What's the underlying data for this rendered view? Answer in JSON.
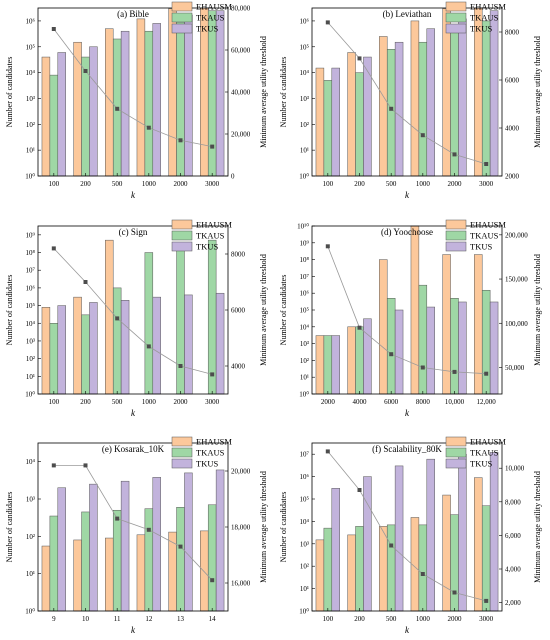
{
  "colors": {
    "EHAUSM": "#fcc89b",
    "TKAUS": "#9fd7a5",
    "TKUS": "#c2b3dc",
    "line": "#9a9a9a",
    "marker": "#4d4d4d"
  },
  "chart_data": [
    {
      "type": "bar",
      "title": "(a) Bible",
      "xlabel": "k",
      "ylabel": "Number of candidates",
      "y2label": "Minimum average utility threshold",
      "y_scale": "log",
      "ylog_range": [
        0,
        6.5
      ],
      "y_ticks": [
        [
          "10⁰",
          0
        ],
        [
          "10¹",
          1
        ],
        [
          "10²",
          2
        ],
        [
          "10³",
          3
        ],
        [
          "10⁴",
          4
        ],
        [
          "10⁵",
          5
        ],
        [
          "10⁶",
          6
        ]
      ],
      "y2lim": [
        0,
        80000
      ],
      "y2_ticks": [
        [
          "0",
          0
        ],
        [
          "20,000",
          20000
        ],
        [
          "40,000",
          40000
        ],
        [
          "60,000",
          60000
        ],
        [
          "80,000",
          80000
        ]
      ],
      "categories": [
        "100",
        "200",
        "500",
        "1000",
        "2000",
        "3000"
      ],
      "series": [
        {
          "name": "EHAUSM",
          "values": [
            40000,
            150000,
            500000,
            1200000,
            3000000,
            15000000
          ]
        },
        {
          "name": "TKAUS",
          "values": [
            8000,
            40000,
            200000,
            400000,
            900000,
            2500000
          ]
        },
        {
          "name": "TKUS",
          "values": [
            60000,
            100000,
            400000,
            800000,
            1700000,
            2500000
          ]
        }
      ],
      "line": {
        "values": [
          70000,
          50000,
          32000,
          23000,
          17000,
          14000
        ]
      },
      "legend_position": "top-right"
    },
    {
      "type": "bar",
      "title": "(b) Leviathan",
      "xlabel": "k",
      "ylabel": "Number of candidates",
      "y2label": "Minimum average utility threshold",
      "y_scale": "log",
      "ylog_range": [
        0,
        6.5
      ],
      "y_ticks": [
        [
          "10⁰",
          0
        ],
        [
          "10¹",
          1
        ],
        [
          "10²",
          2
        ],
        [
          "10³",
          3
        ],
        [
          "10⁴",
          4
        ],
        [
          "10⁵",
          5
        ],
        [
          "10⁶",
          6
        ]
      ],
      "y2lim": [
        2000,
        9000
      ],
      "y2_ticks": [
        [
          "2000",
          2000
        ],
        [
          "4000",
          4000
        ],
        [
          "6000",
          6000
        ],
        [
          "8000",
          8000
        ]
      ],
      "categories": [
        "100",
        "200",
        "500",
        "1000",
        "2000",
        "3000"
      ],
      "series": [
        {
          "name": "EHAUSM",
          "values": [
            15000,
            60000,
            250000,
            1000000,
            3000000,
            15000000
          ]
        },
        {
          "name": "TKAUS",
          "values": [
            5000,
            10000,
            80000,
            150000,
            600000,
            1000000
          ]
        },
        {
          "name": "TKUS",
          "values": [
            15000,
            40000,
            150000,
            500000,
            1200000,
            2500000
          ]
        }
      ],
      "line": {
        "values": [
          8400,
          6900,
          4800,
          3700,
          2900,
          2500
        ]
      },
      "legend_position": "top-right"
    },
    {
      "type": "bar",
      "title": "(c) Sign",
      "xlabel": "k",
      "ylabel": "Number of candidates",
      "y2label": "Minimum average utility threshold",
      "y_scale": "log",
      "ylog_range": [
        0,
        9.5
      ],
      "y_ticks": [
        [
          "10⁰",
          0
        ],
        [
          "10¹",
          1
        ],
        [
          "10²",
          2
        ],
        [
          "10³",
          3
        ],
        [
          "10⁴",
          4
        ],
        [
          "10⁵",
          5
        ],
        [
          "10⁶",
          6
        ],
        [
          "10⁷",
          7
        ],
        [
          "10⁸",
          8
        ],
        [
          "10⁹",
          9
        ]
      ],
      "y2lim": [
        3000,
        9000
      ],
      "y2_ticks": [
        [
          "4000",
          4000
        ],
        [
          "6000",
          6000
        ],
        [
          "8000",
          8000
        ]
      ],
      "categories": [
        "100",
        "200",
        "500",
        "1000",
        "2000",
        "3000"
      ],
      "series": [
        {
          "name": "EHAUSM",
          "values": [
            80000,
            300000,
            500000000,
            1,
            1,
            1
          ]
        },
        {
          "name": "TKAUS",
          "values": [
            10000,
            30000,
            1000000,
            100000000,
            300000000,
            500000000
          ]
        },
        {
          "name": "TKUS",
          "values": [
            100000,
            150000,
            200000,
            300000,
            400000,
            500000
          ]
        }
      ],
      "line": {
        "values": [
          8200,
          7000,
          5700,
          4700,
          4000,
          3700
        ]
      },
      "legend_position": "top-right"
    },
    {
      "type": "bar",
      "title": "(d) Yoochoose",
      "xlabel": "k",
      "ylabel": "Number of candidates",
      "y2label": "Minimum average utility threshold",
      "y_scale": "log",
      "ylog_range": [
        0,
        10
      ],
      "y_ticks": [
        [
          "10⁰",
          0
        ],
        [
          "10¹",
          1
        ],
        [
          "10²",
          2
        ],
        [
          "10³",
          3
        ],
        [
          "10⁴",
          4
        ],
        [
          "10⁵",
          5
        ],
        [
          "10⁶",
          6
        ],
        [
          "10⁷",
          7
        ],
        [
          "10⁸",
          8
        ],
        [
          "10⁹",
          9
        ],
        [
          "10¹⁰",
          10
        ]
      ],
      "y2lim": [
        20000,
        210000
      ],
      "y2_ticks": [
        [
          "50,000",
          50000
        ],
        [
          "100,000",
          100000
        ],
        [
          "150,000",
          150000
        ],
        [
          "200,000",
          200000
        ]
      ],
      "categories": [
        "2000",
        "4000",
        "6000",
        "8000",
        "10,000",
        "12,000"
      ],
      "series": [
        {
          "name": "EHAUSM",
          "values": [
            3000,
            10000,
            100000000,
            10000000000,
            200000000,
            200000000
          ]
        },
        {
          "name": "TKAUS",
          "values": [
            3000,
            10000,
            500000,
            3000000,
            500000,
            1500000
          ]
        },
        {
          "name": "TKUS",
          "values": [
            3000,
            30000,
            100000,
            150000,
            300000,
            300000
          ]
        }
      ],
      "line": {
        "values": [
          187000,
          95000,
          65000,
          50000,
          45000,
          43000
        ]
      },
      "legend_position": "top-right"
    },
    {
      "type": "bar",
      "title": "(e) Kosarak_10K",
      "xlabel": "k",
      "ylabel": "Number of candidates",
      "y2label": "Minimum average utility threshold",
      "y_scale": "log",
      "ylog_range": [
        0,
        4.5
      ],
      "y_ticks": [
        [
          "10⁰",
          0
        ],
        [
          "10¹",
          1
        ],
        [
          "10²",
          2
        ],
        [
          "10³",
          3
        ],
        [
          "10⁴",
          4
        ]
      ],
      "y2lim": [
        15000,
        21000
      ],
      "y2_ticks": [
        [
          "16,000",
          16000
        ],
        [
          "18,000",
          18000
        ],
        [
          "20,000",
          20000
        ]
      ],
      "categories": [
        "9",
        "10",
        "11",
        "12",
        "13",
        "14"
      ],
      "series": [
        {
          "name": "EHAUSM",
          "values": [
            55,
            80,
            90,
            110,
            130,
            140
          ]
        },
        {
          "name": "TKAUS",
          "values": [
            350,
            450,
            500,
            550,
            600,
            700
          ]
        },
        {
          "name": "TKUS",
          "values": [
            2000,
            2500,
            3000,
            3800,
            5000,
            6000
          ]
        }
      ],
      "line": {
        "values": [
          20200,
          20200,
          18300,
          17900,
          17300,
          16100
        ]
      },
      "legend_position": "top-right"
    },
    {
      "type": "bar",
      "title": "(f) Scalability_80K",
      "xlabel": "k",
      "ylabel": "Number of candidates",
      "y2label": "Minimum average utility threshold",
      "y_scale": "log",
      "ylog_range": [
        0,
        7.5
      ],
      "y_ticks": [
        [
          "10⁰",
          0
        ],
        [
          "10¹",
          1
        ],
        [
          "10²",
          2
        ],
        [
          "10³",
          3
        ],
        [
          "10⁴",
          4
        ],
        [
          "10⁵",
          5
        ],
        [
          "10⁶",
          6
        ],
        [
          "10⁷",
          7
        ]
      ],
      "y2lim": [
        1500,
        11500
      ],
      "y2_ticks": [
        [
          "2,000",
          2000
        ],
        [
          "4,000",
          4000
        ],
        [
          "6,000",
          6000
        ],
        [
          "8,000",
          8000
        ],
        [
          "10,000",
          10000
        ]
      ],
      "categories": [
        "100",
        "200",
        "500",
        "1000",
        "2000",
        "3000"
      ],
      "series": [
        {
          "name": "EHAUSM",
          "values": [
            1500,
            2500,
            6000,
            15000,
            150000,
            900000
          ]
        },
        {
          "name": "TKAUS",
          "values": [
            5000,
            6000,
            7000,
            7000,
            20000,
            50000
          ]
        },
        {
          "name": "TKUS",
          "values": [
            300000,
            1000000,
            3000000,
            6000000,
            10000000,
            12000000
          ]
        }
      ],
      "line": {
        "values": [
          11000,
          8700,
          5400,
          3700,
          2600,
          2100
        ]
      },
      "legend_position": "top-right"
    }
  ]
}
